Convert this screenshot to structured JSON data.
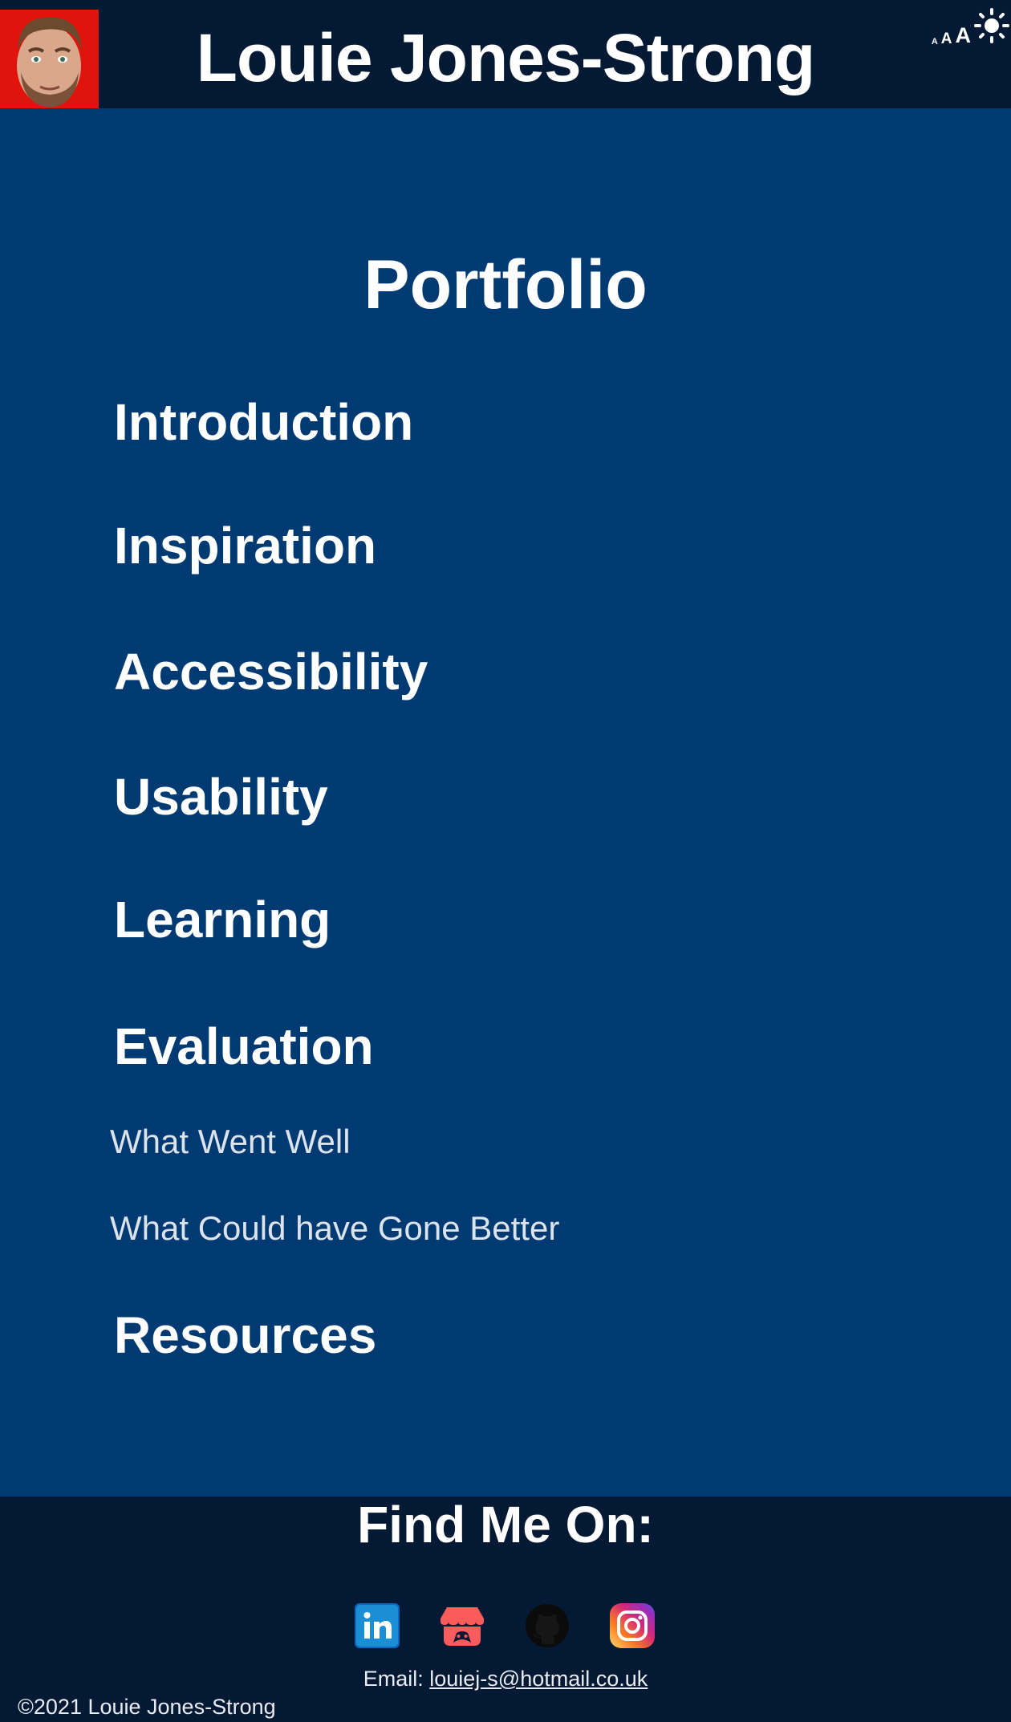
{
  "header": {
    "site_title": "Louie Jones-Strong",
    "avatar_alt": "avatar",
    "text_size_small": "A",
    "text_size_medium": "A",
    "text_size_large": "A"
  },
  "main": {
    "heading": "Portfolio",
    "nav": [
      {
        "label": "Introduction"
      },
      {
        "label": "Inspiration"
      },
      {
        "label": "Accessibility"
      },
      {
        "label": "Usability"
      },
      {
        "label": "Learning"
      },
      {
        "label": "Evaluation"
      }
    ],
    "sub_nav": [
      {
        "label": "What Went Well"
      },
      {
        "label": "What Could have Gone Better"
      }
    ],
    "resources_label": "Resources"
  },
  "footer": {
    "heading": "Find Me On:",
    "email_label": "Email: ",
    "email": "louiej-s@hotmail.co.uk",
    "copyright": "©2021 Louie Jones-Strong"
  },
  "icons": {
    "linkedin": "linkedin-icon",
    "itch": "itch-io-icon",
    "github": "github-icon",
    "instagram": "instagram-icon",
    "theme": "sun-icon"
  },
  "colors": {
    "header_bg": "#041933",
    "main_bg": "#003a73",
    "avatar_bg": "#e0140c",
    "linkedin": "#0a66c2",
    "itch": "#fa5c5c",
    "github": "#0b0b0b"
  }
}
